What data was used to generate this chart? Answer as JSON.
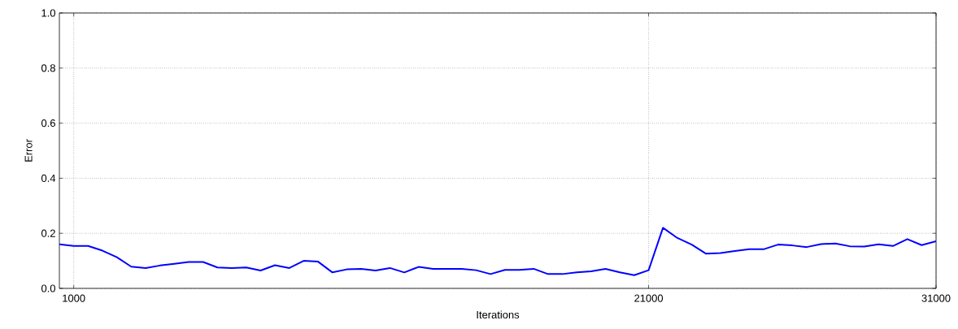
{
  "chart_data": {
    "type": "line",
    "xlabel": "Iterations",
    "ylabel": "Error",
    "x": [
      500,
      1000,
      1500,
      2000,
      2500,
      3000,
      3500,
      4000,
      4500,
      5000,
      5500,
      6000,
      6500,
      7000,
      7500,
      8000,
      8500,
      9000,
      9500,
      10000,
      10500,
      11000,
      11500,
      12000,
      12500,
      13000,
      13500,
      14000,
      14500,
      15000,
      15500,
      16000,
      16500,
      17000,
      17500,
      18000,
      18500,
      19000,
      19500,
      20000,
      20500,
      21000,
      21500,
      22000,
      22500,
      23000,
      23500,
      24000,
      24500,
      25000,
      25500,
      26000,
      26500,
      27000,
      27500,
      28000,
      28500,
      29000,
      29500,
      30000,
      30500,
      31000
    ],
    "series": [
      {
        "color": "#0000ff",
        "values": [
          0.16,
          0.154,
          0.154,
          0.137,
          0.113,
          0.079,
          0.074,
          0.083,
          0.089,
          0.096,
          0.096,
          0.076,
          0.074,
          0.076,
          0.065,
          0.084,
          0.074,
          0.1,
          0.097,
          0.058,
          0.069,
          0.071,
          0.065,
          0.074,
          0.058,
          0.078,
          0.071,
          0.071,
          0.071,
          0.066,
          0.052,
          0.067,
          0.067,
          0.071,
          0.052,
          0.052,
          0.058,
          0.062,
          0.071,
          0.058,
          0.048,
          0.066,
          0.22,
          0.183,
          0.159,
          0.126,
          0.128,
          0.136,
          0.142,
          0.142,
          0.159,
          0.156,
          0.15,
          0.161,
          0.163,
          0.153,
          0.152,
          0.16,
          0.154,
          0.179,
          0.157,
          0.171
        ]
      }
    ],
    "xlim": [
      500,
      31000
    ],
    "ylim": [
      0,
      1
    ],
    "xticks": [
      1000,
      21000,
      31000
    ],
    "yticks": [
      {
        "value": 0,
        "label": "0.0"
      },
      0.2,
      0.4,
      0.6,
      0.8,
      {
        "value": 1,
        "label": "1.0"
      }
    ],
    "grid": true,
    "marker": "none",
    "line_style": "solid"
  }
}
